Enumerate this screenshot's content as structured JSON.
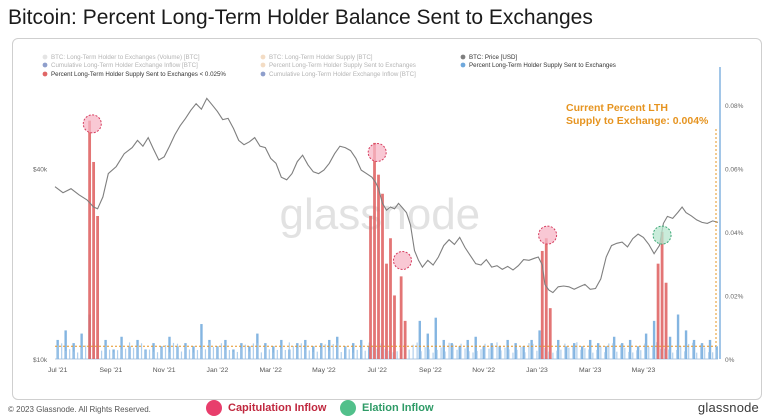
{
  "title": "Bitcoin: Percent Long-Term Holder Balance Sent to Exchanges",
  "legend": [
    {
      "label": "BTC: Long-Term Holder to Exchanges (Volume) [BTC]",
      "color": "#c9c9c9",
      "faded": true
    },
    {
      "label": "BTC: Long-Term Holder Supply [BTC]",
      "color": "#e8b98a",
      "faded": true
    },
    {
      "label": "BTC: Price [USD]",
      "color": "#7f7f7f",
      "faded": false
    },
    {
      "label": "Cumulative Long-Term Holder Exchange Inflow [BTC]",
      "color": "#1f3f99",
      "faded": true
    },
    {
      "label": "Percent Long-Term Holder Supply Sent to Exchanges",
      "color": "#e8b98a",
      "faded": true
    },
    {
      "label": "Percent Long-Term Holder Supply Sent to Exchanges",
      "color": "#6fa8dc",
      "faded": false
    },
    {
      "label": "Percent Long-Term Holder Supply Sent to Exchanges < 0.025%",
      "color": "#e06666",
      "faded": false
    },
    {
      "label": "Cumulative Long-Term Holder Exchange Inflow [BTC]",
      "color": "#1f3f99",
      "faded": true
    }
  ],
  "annotation": {
    "line1": "Current Percent LTH",
    "line2": "Supply to Exchange: 0.004%",
    "color": "#e69420"
  },
  "watermark": "glassnode",
  "footer": {
    "copyright": "© 2023 Glassnode. All Rights Reserved.",
    "brand": "glassnode",
    "keys": [
      {
        "label": "Capitulation Inflow",
        "color": "#e83e6c"
      },
      {
        "label": "Elation Inflow",
        "color": "#52c08b"
      }
    ]
  },
  "chart_data": {
    "type": "line",
    "x_ticks": [
      "Jul '21",
      "Sep '21",
      "Nov '21",
      "Jan '22",
      "Mar '22",
      "May '22",
      "Jul '22",
      "Sep '22",
      "Nov '22",
      "Jan '23",
      "Mar '23",
      "May '23"
    ],
    "left_axis": {
      "label": "",
      "scale": "log",
      "ticks": [
        "$10k",
        "$40k"
      ],
      "range": [
        10000,
        80000
      ]
    },
    "right_axis": {
      "label": "",
      "ticks": [
        "0%",
        "0.02%",
        "0.04%",
        "0.06%",
        "0.08%"
      ],
      "range": [
        0,
        0.09
      ]
    },
    "x_range_months": [
      0,
      24.9
    ],
    "threshold_pct": 0.004,
    "series": [
      {
        "name": "BTC: Price [USD]",
        "style": "line",
        "color": "#7f7f7f",
        "points": [
          [
            0,
            35000
          ],
          [
            0.3,
            33500
          ],
          [
            0.6,
            34500
          ],
          [
            0.9,
            33000
          ],
          [
            1.2,
            31800
          ],
          [
            1.45,
            30200
          ],
          [
            1.6,
            29800
          ],
          [
            1.8,
            32500
          ],
          [
            2.0,
            38500
          ],
          [
            2.3,
            40500
          ],
          [
            2.6,
            44500
          ],
          [
            2.9,
            46500
          ],
          [
            3.1,
            49000
          ],
          [
            3.3,
            47000
          ],
          [
            3.5,
            50000
          ],
          [
            3.7,
            46000
          ],
          [
            3.9,
            42500
          ],
          [
            4.1,
            43500
          ],
          [
            4.3,
            47000
          ],
          [
            4.5,
            51000
          ],
          [
            4.7,
            54500
          ],
          [
            4.9,
            57500
          ],
          [
            5.1,
            61000
          ],
          [
            5.3,
            64000
          ],
          [
            5.5,
            61500
          ],
          [
            5.7,
            66500
          ],
          [
            5.9,
            63500
          ],
          [
            6.1,
            60500
          ],
          [
            6.3,
            57000
          ],
          [
            6.5,
            57500
          ],
          [
            6.7,
            53500
          ],
          [
            6.9,
            49000
          ],
          [
            7.1,
            47500
          ],
          [
            7.3,
            48500
          ],
          [
            7.5,
            50000
          ],
          [
            7.7,
            47000
          ],
          [
            7.9,
            46500
          ],
          [
            8.1,
            43000
          ],
          [
            8.3,
            41500
          ],
          [
            8.5,
            37500
          ],
          [
            8.7,
            36800
          ],
          [
            8.9,
            38500
          ],
          [
            9.1,
            42000
          ],
          [
            9.3,
            44000
          ],
          [
            9.5,
            41000
          ],
          [
            9.7,
            39000
          ],
          [
            9.9,
            38500
          ],
          [
            10.1,
            39500
          ],
          [
            10.3,
            41500
          ],
          [
            10.5,
            44500
          ],
          [
            10.7,
            47000
          ],
          [
            10.9,
            46500
          ],
          [
            11.1,
            45500
          ],
          [
            11.3,
            43000
          ],
          [
            11.5,
            39500
          ],
          [
            11.7,
            38500
          ],
          [
            11.9,
            37500
          ],
          [
            12.05,
            36000
          ],
          [
            12.15,
            34500
          ],
          [
            12.3,
            31000
          ],
          [
            12.45,
            29500
          ],
          [
            12.6,
            30200
          ],
          [
            12.75,
            29800
          ],
          [
            12.9,
            31000
          ],
          [
            13.05,
            30000
          ],
          [
            13.2,
            29000
          ],
          [
            13.35,
            26500
          ],
          [
            13.5,
            22000
          ],
          [
            13.65,
            20500
          ],
          [
            13.8,
            19500
          ],
          [
            14.0,
            20500
          ],
          [
            14.2,
            19800
          ],
          [
            14.4,
            21000
          ],
          [
            14.6,
            22800
          ],
          [
            14.8,
            23800
          ],
          [
            15.0,
            23000
          ],
          [
            15.2,
            24200
          ],
          [
            15.4,
            22500
          ],
          [
            15.6,
            21200
          ],
          [
            15.8,
            20000
          ],
          [
            16.0,
            19800
          ],
          [
            16.2,
            20600
          ],
          [
            16.4,
            19500
          ],
          [
            16.6,
            19700
          ],
          [
            16.8,
            19200
          ],
          [
            17.0,
            19600
          ],
          [
            17.2,
            19100
          ],
          [
            17.4,
            19700
          ],
          [
            17.6,
            20600
          ],
          [
            17.8,
            20500
          ],
          [
            18.0,
            20800
          ],
          [
            18.15,
            21000
          ],
          [
            18.3,
            19800
          ],
          [
            18.4,
            17200
          ],
          [
            18.55,
            16500
          ],
          [
            18.7,
            16200
          ],
          [
            18.9,
            16900
          ],
          [
            19.1,
            17000
          ],
          [
            19.3,
            16900
          ],
          [
            19.5,
            16600
          ],
          [
            19.7,
            16900
          ],
          [
            19.9,
            17200
          ],
          [
            20.1,
            16600
          ],
          [
            20.3,
            16700
          ],
          [
            20.5,
            17900
          ],
          [
            20.7,
            21000
          ],
          [
            20.9,
            22800
          ],
          [
            21.1,
            23200
          ],
          [
            21.3,
            23400
          ],
          [
            21.5,
            22600
          ],
          [
            21.7,
            24000
          ],
          [
            21.9,
            24800
          ],
          [
            22.1,
            24200
          ],
          [
            22.3,
            23000
          ],
          [
            22.5,
            21500
          ],
          [
            22.7,
            22800
          ],
          [
            22.85,
            26800
          ],
          [
            23.0,
            28200
          ],
          [
            23.2,
            27800
          ],
          [
            23.4,
            29100
          ],
          [
            23.55,
            30200
          ],
          [
            23.7,
            29000
          ],
          [
            23.9,
            28300
          ],
          [
            24.1,
            27500
          ],
          [
            24.3,
            27000
          ],
          [
            24.5,
            26800
          ],
          [
            24.7,
            27300
          ],
          [
            24.9,
            27000
          ]
        ]
      },
      {
        "name": "Percent Long-Term Holder Supply Sent to Exchanges",
        "style": "bars",
        "color": "#6fa8dc",
        "points": [
          [
            0.1,
            0.006
          ],
          [
            0.4,
            0.009
          ],
          [
            0.7,
            0.005
          ],
          [
            1.0,
            0.008
          ],
          [
            1.3,
            0.014
          ],
          [
            1.9,
            0.006
          ],
          [
            2.2,
            0.003
          ],
          [
            2.5,
            0.007
          ],
          [
            2.8,
            0.004
          ],
          [
            3.1,
            0.006
          ],
          [
            3.4,
            0.003
          ],
          [
            3.7,
            0.005
          ],
          [
            4.0,
            0.004
          ],
          [
            4.3,
            0.007
          ],
          [
            4.6,
            0.004
          ],
          [
            4.9,
            0.005
          ],
          [
            5.2,
            0.004
          ],
          [
            5.5,
            0.011
          ],
          [
            5.8,
            0.006
          ],
          [
            6.1,
            0.004
          ],
          [
            6.4,
            0.006
          ],
          [
            6.7,
            0.003
          ],
          [
            7.0,
            0.005
          ],
          [
            7.3,
            0.004
          ],
          [
            7.6,
            0.008
          ],
          [
            7.9,
            0.005
          ],
          [
            8.2,
            0.004
          ],
          [
            8.5,
            0.006
          ],
          [
            8.8,
            0.003
          ],
          [
            9.1,
            0.005
          ],
          [
            9.4,
            0.006
          ],
          [
            9.7,
            0.004
          ],
          [
            10.0,
            0.005
          ],
          [
            10.3,
            0.006
          ],
          [
            10.6,
            0.007
          ],
          [
            10.9,
            0.004
          ],
          [
            11.2,
            0.005
          ],
          [
            11.5,
            0.006
          ],
          [
            11.8,
            0.004
          ],
          [
            13.7,
            0.012
          ],
          [
            14.0,
            0.008
          ],
          [
            14.3,
            0.013
          ],
          [
            14.6,
            0.006
          ],
          [
            14.9,
            0.005
          ],
          [
            15.2,
            0.004
          ],
          [
            15.5,
            0.006
          ],
          [
            15.8,
            0.007
          ],
          [
            16.1,
            0.004
          ],
          [
            16.4,
            0.005
          ],
          [
            16.7,
            0.004
          ],
          [
            17.0,
            0.006
          ],
          [
            17.3,
            0.005
          ],
          [
            17.6,
            0.004
          ],
          [
            17.9,
            0.006
          ],
          [
            18.2,
            0.009
          ],
          [
            18.9,
            0.006
          ],
          [
            19.2,
            0.004
          ],
          [
            19.5,
            0.005
          ],
          [
            19.8,
            0.004
          ],
          [
            20.1,
            0.006
          ],
          [
            20.4,
            0.005
          ],
          [
            20.7,
            0.004
          ],
          [
            21.0,
            0.007
          ],
          [
            21.3,
            0.005
          ],
          [
            21.6,
            0.006
          ],
          [
            21.9,
            0.004
          ],
          [
            22.2,
            0.008
          ],
          [
            22.5,
            0.012
          ],
          [
            23.1,
            0.007
          ],
          [
            23.4,
            0.014
          ],
          [
            23.7,
            0.009
          ],
          [
            24.0,
            0.006
          ],
          [
            24.3,
            0.005
          ],
          [
            24.6,
            0.006
          ],
          [
            24.85,
            0.004
          ]
        ]
      },
      {
        "name": "Percent Long-Term Holder Supply Sent to Exchanges < 0.025%",
        "style": "spikes",
        "color": "#e06666",
        "points": [
          [
            1.3,
            0.075
          ],
          [
            1.45,
            0.062
          ],
          [
            1.6,
            0.045
          ],
          [
            11.85,
            0.045
          ],
          [
            12.0,
            0.068
          ],
          [
            12.15,
            0.058
          ],
          [
            12.3,
            0.052
          ],
          [
            12.45,
            0.03
          ],
          [
            12.6,
            0.038
          ],
          [
            12.75,
            0.02
          ],
          [
            13.0,
            0.026
          ],
          [
            13.15,
            0.012
          ],
          [
            18.3,
            0.034
          ],
          [
            18.45,
            0.038
          ],
          [
            18.6,
            0.016
          ],
          [
            22.65,
            0.03
          ],
          [
            22.8,
            0.04
          ],
          [
            22.95,
            0.024
          ]
        ]
      }
    ],
    "markers": [
      {
        "x": 1.4,
        "y": 0.074,
        "kind": "capitulation"
      },
      {
        "x": 12.1,
        "y": 0.065,
        "kind": "capitulation"
      },
      {
        "x": 13.05,
        "y": 0.031,
        "kind": "capitulation"
      },
      {
        "x": 18.5,
        "y": 0.039,
        "kind": "capitulation"
      },
      {
        "x": 22.8,
        "y": 0.039,
        "kind": "elation"
      }
    ]
  }
}
